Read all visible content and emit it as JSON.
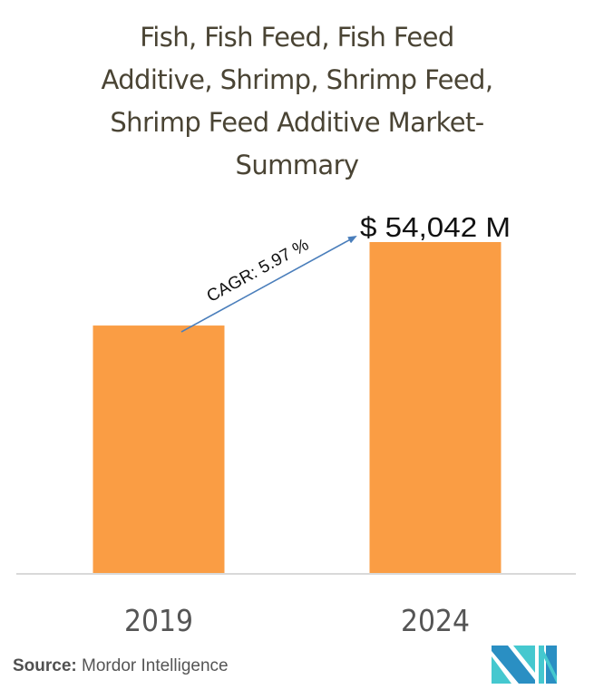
{
  "chart_data": {
    "type": "bar",
    "title": "Fish, Fish Feed, Fish Feed Additive, Shrimp, Shrimp Feed, Shrimp Feed Additive Market-Summary",
    "title_lines": [
      "Fish, Fish Feed, Fish Feed",
      "Additive, Shrimp, Shrimp Feed,",
      "Shrimp Feed Additive Market-",
      "Summary"
    ],
    "categories": [
      "2019",
      "2024"
    ],
    "values": [
      40447,
      54042
    ],
    "value_unit": "USD Million",
    "data_labels": [
      "",
      "$ 54,042 M"
    ],
    "annotation": {
      "text": "CAGR: 5.97 %",
      "type": "arrow",
      "from": "2019",
      "to": "2024"
    },
    "xlabel": "",
    "ylabel": "",
    "ylim": [
      0,
      60000
    ],
    "grid": false,
    "legend": "none",
    "bar_color": "#fa9d44",
    "arrow_color": "#4a7ebb"
  },
  "source": {
    "label": "Source:",
    "text": "Mordor Intelligence"
  },
  "logo": {
    "name": "Mordor Intelligence logo",
    "colors": [
      "#2a8fc3",
      "#45c8cf"
    ]
  }
}
